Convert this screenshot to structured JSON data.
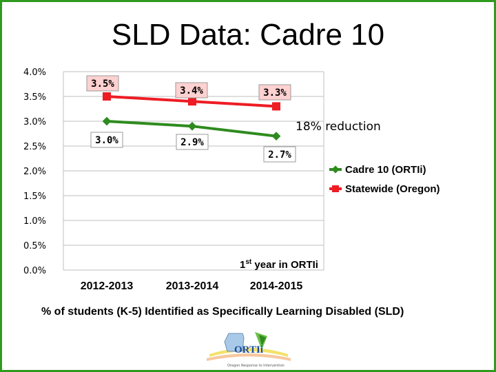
{
  "slide": {
    "title": "SLD Data: Cadre 10",
    "caption": "% of students (K-5) Identified as Specifically Learning Disabled (SLD)",
    "logo": {
      "name": "ORTIi",
      "tagline": "Oregon Response to Intervention"
    }
  },
  "colors": {
    "frame": "#2e9a1e",
    "cadre": "#2e8b1e",
    "statewide": "#ee1c24",
    "label_bg": "#ffd1d1",
    "label_border": "#999999"
  },
  "chart_data": {
    "type": "line",
    "title": "",
    "categories": [
      "2012-2013",
      "2013-2014",
      "2014-2015"
    ],
    "y_ticks": [
      "4.0%",
      "3.5%",
      "3.0%",
      "2.5%",
      "2.0%",
      "1.5%",
      "1.0%",
      "0.5%",
      "0.0%"
    ],
    "ylim": [
      0,
      4.0
    ],
    "series": [
      {
        "name": "Cadre 10 (ORTIi)",
        "values": [
          3.0,
          2.9,
          2.7
        ],
        "labels": [
          "3.0%",
          "2.9%",
          "2.7%"
        ],
        "color": "#2e8b1e",
        "marker": "diamond"
      },
      {
        "name": "Statewide (Oregon)",
        "values": [
          3.5,
          3.4,
          3.3
        ],
        "labels": [
          "3.5%",
          "3.4%",
          "3.3%"
        ],
        "color": "#ee1c24",
        "marker": "square"
      }
    ],
    "annotations": {
      "reduction": "18% reduction",
      "first_year": {
        "prefix": "1",
        "superscript": "st",
        "suffix": " year in ORTIi"
      }
    },
    "grid": true,
    "legend_position": "right"
  }
}
